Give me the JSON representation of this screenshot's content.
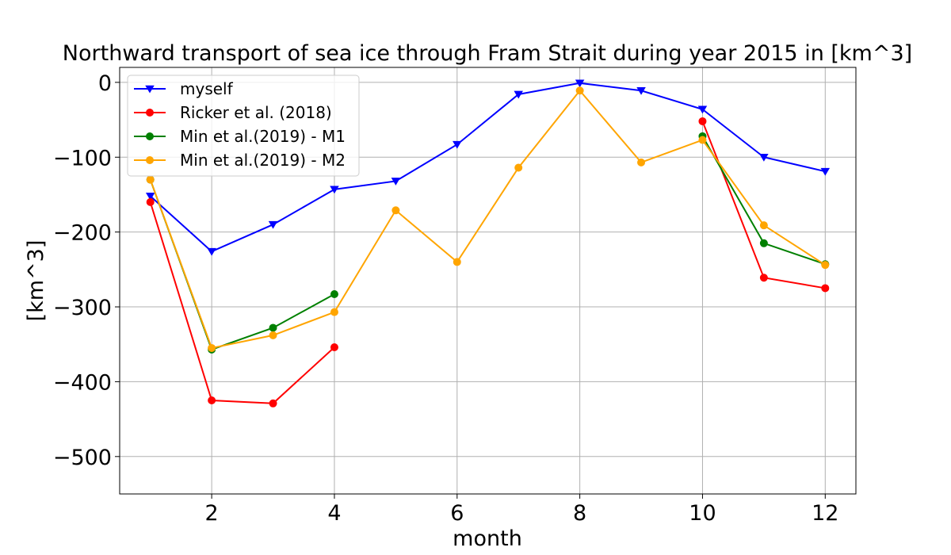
{
  "chart_data": {
    "type": "line",
    "title": "Northward transport of sea ice through Fram Strait during year 2015 in [km^3]",
    "xlabel": "month",
    "ylabel": "[km^3]",
    "xlim": [
      0.5,
      12.5
    ],
    "ylim": [
      -550,
      20
    ],
    "xticks": [
      2,
      4,
      6,
      8,
      10,
      12
    ],
    "xtick_labels": [
      "2",
      "4",
      "6",
      "8",
      "10",
      "12"
    ],
    "yticks": [
      0,
      -100,
      -200,
      -300,
      -400,
      -500
    ],
    "ytick_labels": [
      "0",
      "−100",
      "−200",
      "−300",
      "−400",
      "−500"
    ],
    "grid": true,
    "legend_position": "top-left",
    "series": [
      {
        "name": "myself",
        "color": "#0000ff",
        "marker": "triangle-down",
        "x": [
          1,
          2,
          3,
          4,
          5,
          6,
          7,
          8,
          9,
          10,
          11,
          12
        ],
        "values": [
          -152,
          -226,
          -190,
          -143,
          -132,
          -83,
          -16,
          -1,
          -11,
          -36,
          -100,
          -119
        ]
      },
      {
        "name": "Ricker et al. (2018)",
        "color": "#ff0000",
        "marker": "circle",
        "x": [
          1,
          2,
          3,
          4,
          5,
          6,
          7,
          8,
          9,
          10,
          11,
          12
        ],
        "values": [
          -160,
          -425,
          -429,
          -354,
          null,
          null,
          null,
          null,
          null,
          -52,
          -261,
          -275
        ]
      },
      {
        "name": "Min et al.(2019) - M1",
        "color": "#008000",
        "marker": "circle",
        "x": [
          1,
          2,
          3,
          4,
          5,
          6,
          7,
          8,
          9,
          10,
          11,
          12
        ],
        "values": [
          -130,
          -357,
          -328,
          -283,
          null,
          null,
          null,
          null,
          null,
          -72,
          -215,
          -243
        ]
      },
      {
        "name": "Min et al.(2019) - M2",
        "color": "#ffa500",
        "marker": "circle",
        "x": [
          1,
          2,
          3,
          4,
          5,
          6,
          7,
          8,
          9,
          10,
          11,
          12
        ],
        "values": [
          -130,
          -355,
          -338,
          -307,
          -171,
          -240,
          -114,
          -11,
          -107,
          -77,
          -191,
          -244
        ]
      }
    ]
  }
}
